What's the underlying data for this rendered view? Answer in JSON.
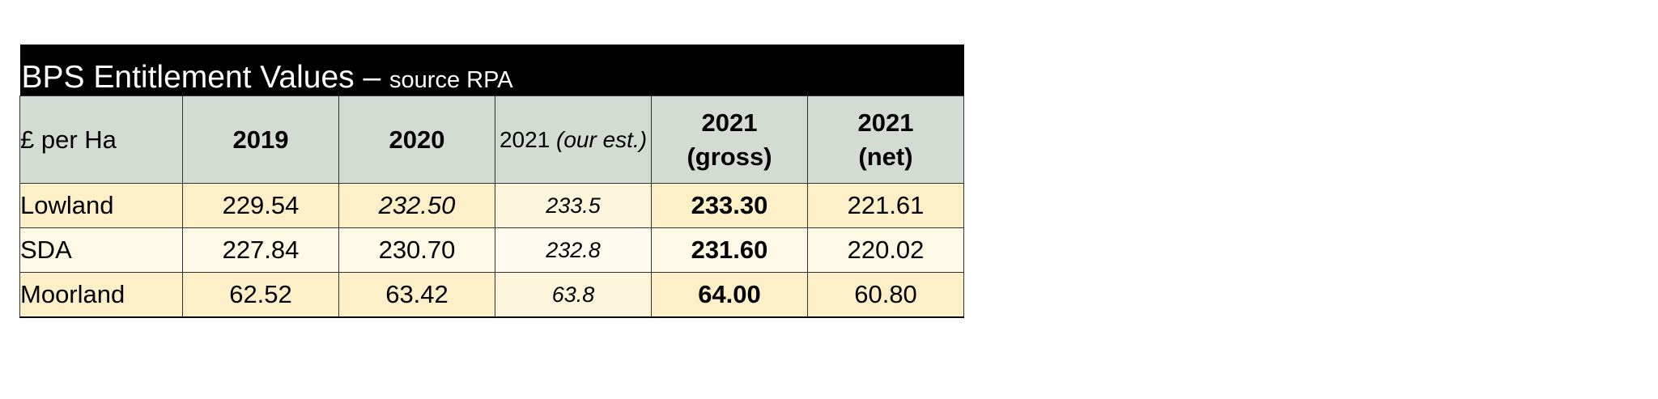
{
  "table": {
    "title": "BPS Entitlement Values –",
    "subtitle": "source RPA",
    "header": {
      "unit": "£ per Ha",
      "columns": [
        {
          "year": "2019"
        },
        {
          "year": "2020"
        },
        {
          "year": "2021",
          "note": "(our est.)"
        },
        {
          "year": "2021",
          "note": "(gross)"
        },
        {
          "year": "2021",
          "note": "(net)"
        }
      ]
    },
    "rows": [
      [
        "Lowland",
        "229.54",
        "232.50",
        "233.5",
        "233.30",
        "221.61"
      ],
      [
        "SDA",
        "227.84",
        "230.70",
        "232.8",
        "231.60",
        "220.02"
      ],
      [
        "Moorland",
        "62.52",
        "63.42",
        "63.8",
        "64.00",
        "60.80"
      ]
    ]
  }
}
